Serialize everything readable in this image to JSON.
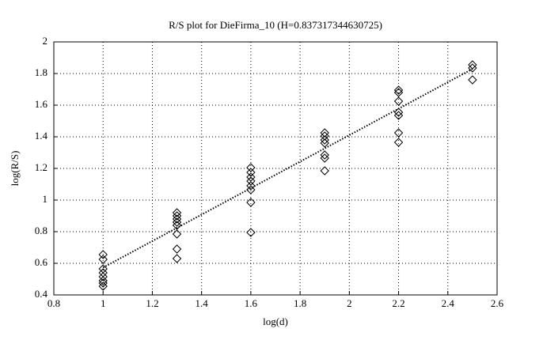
{
  "chart_data": {
    "type": "scatter",
    "title": "R/S plot for DieFirma_10 (H=0.837317344630725)",
    "x_label": "log(d)",
    "y_label": "log(R/S)",
    "xlim": [
      0.8,
      2.6
    ],
    "xticks": [
      0.8,
      1,
      1.2,
      1.4,
      1.6,
      1.8,
      2,
      2.2,
      2.4,
      2.6
    ],
    "ylim": [
      0.4,
      2
    ],
    "yticks": [
      0.4,
      0.6,
      0.8,
      1,
      1.2,
      1.4,
      1.6,
      1.8,
      2
    ],
    "grid": true,
    "series": [
      {
        "color": "#000000",
        "marker": "diamond",
        "x": [
          1,
          1,
          1,
          1,
          1,
          1,
          1,
          1,
          1.3,
          1.3,
          1.3,
          1.3,
          1.3,
          1.3,
          1.3,
          1.3,
          1.6,
          1.6,
          1.6,
          1.6,
          1.6,
          1.6,
          1.6,
          1.6,
          1.9,
          1.9,
          1.9,
          1.9,
          1.9,
          1.9,
          1.9,
          2.2,
          2.2,
          2.2,
          2.2,
          2.2,
          2.2,
          2.2,
          2.5,
          2.5,
          2.5
        ],
        "values": [
          0.655,
          0.625,
          0.565,
          0.54,
          0.515,
          0.49,
          0.475,
          0.455,
          0.92,
          0.9,
          0.88,
          0.86,
          0.84,
          0.785,
          0.69,
          0.63,
          1.205,
          1.175,
          1.145,
          1.12,
          1.09,
          1.065,
          0.985,
          0.795,
          1.425,
          1.405,
          1.38,
          1.36,
          1.285,
          1.265,
          1.185,
          1.695,
          1.68,
          1.625,
          1.555,
          1.535,
          1.425,
          1.365,
          1.855,
          1.835,
          1.76
        ]
      },
      {
        "color": "#000000",
        "line": "dotted",
        "x": [
          1,
          2.5
        ],
        "values": [
          0.573,
          1.829
        ]
      }
    ]
  }
}
